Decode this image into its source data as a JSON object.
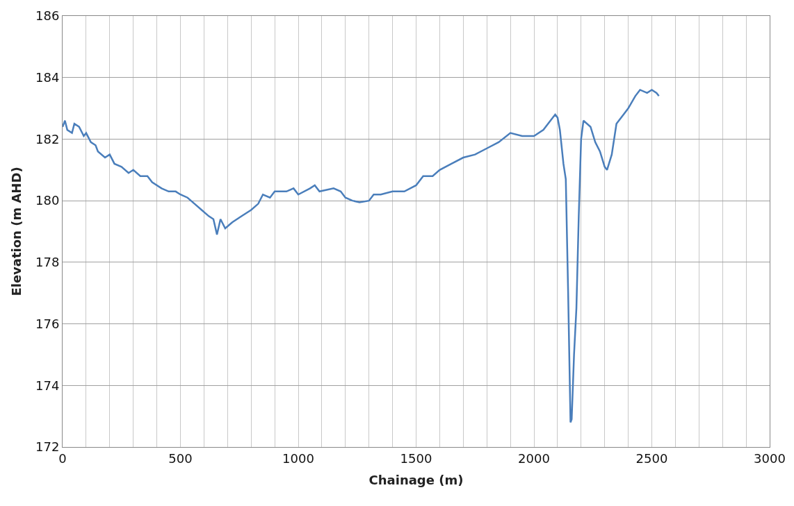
{
  "chart_data": {
    "type": "line",
    "xlabel": "Chainage (m)",
    "ylabel": "Elevation (m AHD)",
    "xlim": [
      0,
      3000
    ],
    "ylim": [
      172,
      186
    ],
    "xticks": [
      0,
      {
        "value": 100,
        "label": null
      },
      {
        "value": 200,
        "label": null
      },
      {
        "value": 300,
        "label": null
      },
      {
        "value": 400,
        "label": null
      },
      500,
      {
        "value": 600,
        "label": null
      },
      {
        "value": 700,
        "label": null
      },
      {
        "value": 800,
        "label": null
      },
      {
        "value": 900,
        "label": null
      },
      1000,
      {
        "value": 1100,
        "label": null
      },
      {
        "value": 1200,
        "label": null
      },
      {
        "value": 1300,
        "label": null
      },
      {
        "value": 1400,
        "label": null
      },
      1500,
      {
        "value": 1600,
        "label": null
      },
      {
        "value": 1700,
        "label": null
      },
      {
        "value": 1800,
        "label": null
      },
      {
        "value": 1900,
        "label": null
      },
      2000,
      {
        "value": 2100,
        "label": null
      },
      {
        "value": 2200,
        "label": null
      },
      {
        "value": 2300,
        "label": null
      },
      {
        "value": 2400,
        "label": null
      },
      2500,
      {
        "value": 2600,
        "label": null
      },
      {
        "value": 2700,
        "label": null
      },
      {
        "value": 2800,
        "label": null
      },
      {
        "value": 2900,
        "label": null
      },
      3000
    ],
    "yticks": [
      172,
      174,
      176,
      178,
      180,
      182,
      184,
      186
    ],
    "grid": true,
    "legend": false,
    "marker": "none",
    "line_style": "solid",
    "series": [
      {
        "color": "#4a7ebb",
        "x": [
          0,
          10,
          20,
          40,
          50,
          70,
          90,
          100,
          120,
          140,
          150,
          180,
          200,
          220,
          250,
          280,
          300,
          330,
          360,
          380,
          420,
          450,
          480,
          500,
          530,
          560,
          590,
          620,
          640,
          655,
          670,
          690,
          720,
          760,
          800,
          830,
          850,
          880,
          900,
          950,
          980,
          1000,
          1050,
          1070,
          1090,
          1150,
          1180,
          1200,
          1230,
          1260,
          1300,
          1320,
          1350,
          1400,
          1450,
          1500,
          1530,
          1570,
          1600,
          1650,
          1700,
          1750,
          1800,
          1850,
          1900,
          1950,
          2000,
          2040,
          2070,
          2090,
          2100,
          2110,
          2125,
          2135,
          2145,
          2155,
          2160,
          2170,
          2180,
          2190,
          2200,
          2210,
          2240,
          2260,
          2280,
          2300,
          2310,
          2330,
          2350,
          2380,
          2400,
          2430,
          2450,
          2480,
          2500,
          2520,
          2530
        ],
        "values": [
          182.4,
          182.6,
          182.3,
          182.2,
          182.5,
          182.4,
          182.1,
          182.2,
          181.9,
          181.8,
          181.6,
          181.4,
          181.5,
          181.2,
          181.1,
          180.9,
          181.0,
          180.8,
          180.8,
          180.6,
          180.4,
          180.3,
          180.3,
          180.2,
          180.1,
          179.9,
          179.7,
          179.5,
          179.4,
          178.9,
          179.4,
          179.1,
          179.3,
          179.5,
          179.7,
          179.9,
          180.2,
          180.1,
          180.3,
          180.3,
          180.4,
          180.2,
          180.4,
          180.5,
          180.3,
          180.4,
          180.3,
          180.1,
          180.0,
          179.95,
          180.0,
          180.2,
          180.2,
          180.3,
          180.3,
          180.5,
          180.8,
          180.8,
          181.0,
          181.2,
          181.4,
          181.5,
          181.7,
          181.9,
          182.2,
          182.1,
          182.1,
          182.3,
          182.6,
          182.8,
          182.7,
          182.3,
          181.2,
          180.7,
          177.0,
          172.8,
          172.9,
          175.0,
          176.5,
          179.5,
          182.0,
          182.6,
          182.4,
          181.9,
          181.6,
          181.1,
          181.0,
          181.5,
          182.5,
          182.8,
          183.0,
          183.4,
          183.6,
          183.5,
          183.6,
          183.5,
          183.4
        ]
      }
    ]
  }
}
